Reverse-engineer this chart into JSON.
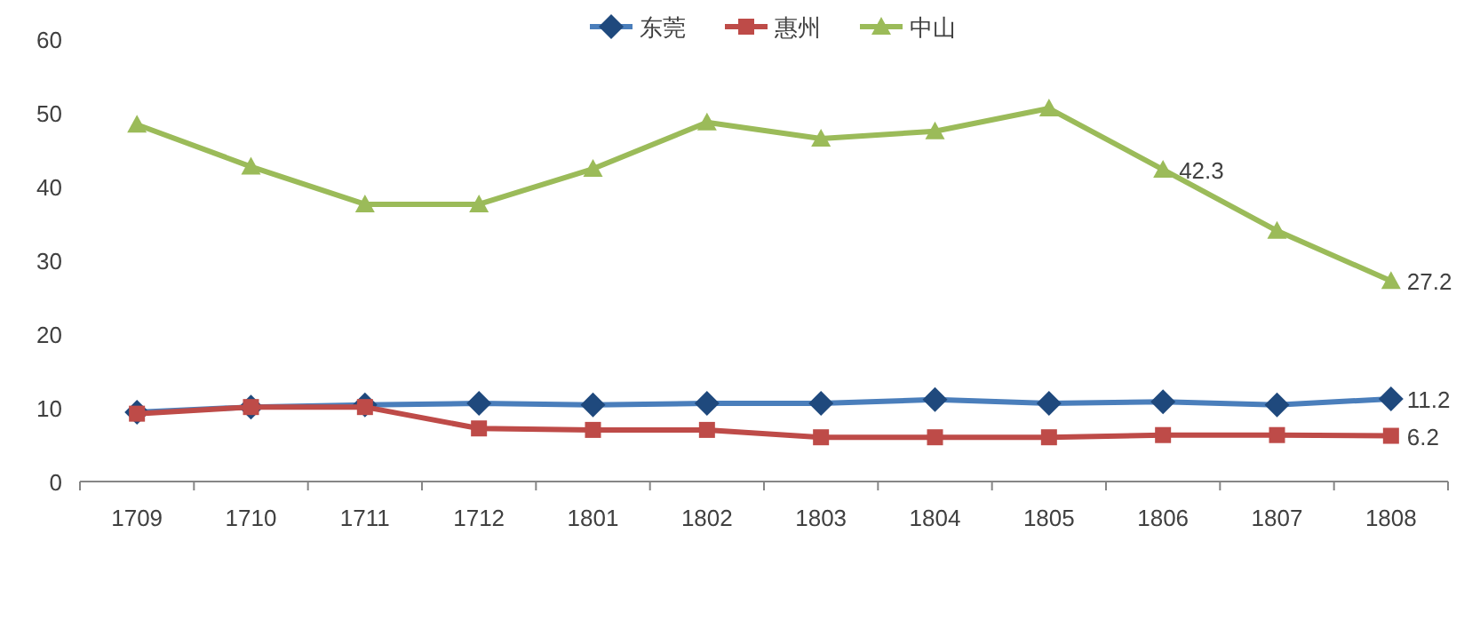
{
  "chart_data": {
    "type": "line",
    "categories": [
      "1709",
      "1710",
      "1711",
      "1712",
      "1801",
      "1802",
      "1803",
      "1804",
      "1805",
      "1806",
      "1807",
      "1808"
    ],
    "ylim": [
      0,
      60
    ],
    "yticks": [
      0,
      10,
      20,
      30,
      40,
      50,
      60
    ],
    "legend": "top",
    "series": [
      {
        "name": "东莞",
        "color": "#4a7ebb",
        "marker": "diamond",
        "values": [
          9.4,
          10.1,
          10.4,
          10.6,
          10.4,
          10.6,
          10.6,
          11.1,
          10.6,
          10.8,
          10.4,
          11.2
        ],
        "value_labels": [
          null,
          null,
          null,
          null,
          null,
          null,
          null,
          null,
          null,
          null,
          null,
          "11.2"
        ]
      },
      {
        "name": "惠州",
        "color": "#be4b48",
        "marker": "square",
        "values": [
          9.2,
          10.1,
          10.1,
          7.2,
          7.0,
          7.0,
          6.0,
          6.0,
          6.0,
          6.3,
          6.3,
          6.2
        ],
        "value_labels": [
          null,
          null,
          null,
          null,
          null,
          null,
          null,
          null,
          null,
          null,
          null,
          "6.2"
        ]
      },
      {
        "name": "中山",
        "color": "#9bbb59",
        "marker": "triangle",
        "values": [
          48.4,
          42.7,
          37.6,
          37.6,
          42.4,
          48.7,
          46.5,
          47.5,
          50.6,
          42.3,
          34.0,
          27.2
        ],
        "value_labels": [
          null,
          null,
          null,
          null,
          null,
          null,
          null,
          null,
          null,
          "42.3",
          null,
          "27.2"
        ]
      }
    ]
  }
}
